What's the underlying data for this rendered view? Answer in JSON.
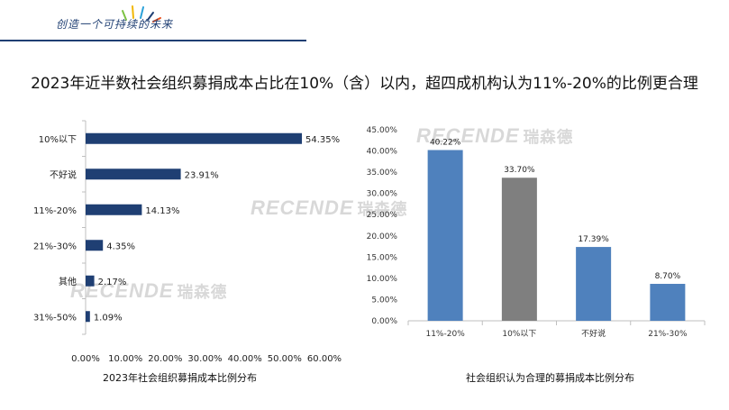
{
  "header": {
    "slogan": "创造一个可持续的未来",
    "headline": "2023年近半数社会组织募捐成本占比在10%（含）以内，超四成机构认为11%-20%的比例更合理"
  },
  "watermark": {
    "latin": "RECENDE",
    "cn": "瑞森德"
  },
  "colors": {
    "navy": "#1f3f73",
    "blue": "#4f81bd",
    "gray": "#7f7f7f"
  },
  "chart_data": [
    {
      "type": "bar",
      "orientation": "horizontal",
      "categories": [
        "10%以下",
        "不好说",
        "11%-20%",
        "21%-30%",
        "其他",
        "31%-50%"
      ],
      "values": [
        54.35,
        23.91,
        14.13,
        4.35,
        2.17,
        1.09
      ],
      "value_labels": [
        "54.35%",
        "23.91%",
        "14.13%",
        "4.35%",
        "2.17%",
        "1.09%"
      ],
      "xlim": [
        0,
        60
      ],
      "x_ticks": [
        "0.00%",
        "10.00%",
        "20.00%",
        "30.00%",
        "40.00%",
        "50.00%",
        "60.00%"
      ],
      "title": "2023年社会组织募捐成本比例分布",
      "grid": false,
      "color": "#1f3f73"
    },
    {
      "type": "bar",
      "orientation": "vertical",
      "categories": [
        "11%-20%",
        "10%以下",
        "不好说",
        "21%-30%"
      ],
      "values": [
        40.22,
        33.7,
        17.39,
        8.7
      ],
      "value_labels": [
        "40.22%",
        "33.70%",
        "17.39%",
        "8.70%"
      ],
      "bar_colors": [
        "#4f81bd",
        "#7f7f7f",
        "#4f81bd",
        "#4f81bd"
      ],
      "ylim": [
        0,
        45
      ],
      "y_ticks": [
        "0.00%",
        "5.00%",
        "10.00%",
        "15.00%",
        "20.00%",
        "25.00%",
        "30.00%",
        "35.00%",
        "40.00%",
        "45.00%"
      ],
      "title": "社会组织认为合理的募捐成本比例分布",
      "grid": false
    }
  ]
}
